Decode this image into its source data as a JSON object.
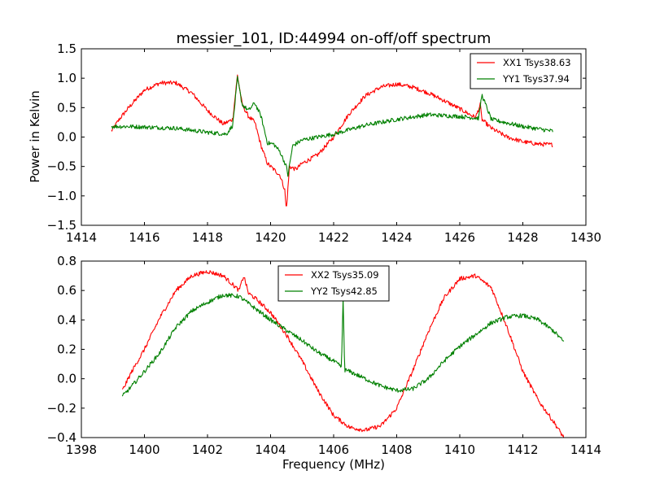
{
  "chart_data": [
    {
      "type": "line",
      "title": "messier_101, ID:44994 on-off/off spectrum",
      "xlabel": "",
      "ylabel": "Power in Kelvin",
      "xlim": [
        1414,
        1430
      ],
      "ylim": [
        -1.5,
        1.5
      ],
      "x_ticks": [
        1414,
        1416,
        1418,
        1420,
        1422,
        1424,
        1426,
        1428,
        1430
      ],
      "y_ticks": [
        -1.5,
        -1.0,
        -0.5,
        0.0,
        0.5,
        1.0,
        1.5
      ],
      "x_tick_labels": [
        "1414",
        "1416",
        "1418",
        "1420",
        "1422",
        "1424",
        "1426",
        "1428",
        "1430"
      ],
      "y_tick_labels": [
        "−1.5",
        "−1.0",
        "−0.5",
        "0.0",
        "0.5",
        "1.0",
        "1.5"
      ],
      "legend_position": "top-right",
      "series": [
        {
          "name": "XX1 Tsys38.63",
          "color": "#ff0000",
          "x": [
            1414.95,
            1415.2,
            1415.5,
            1416.0,
            1416.5,
            1417.0,
            1417.5,
            1418.0,
            1418.5,
            1418.8,
            1418.95,
            1419.1,
            1419.3,
            1419.5,
            1419.7,
            1419.9,
            1420.1,
            1420.3,
            1420.45,
            1420.5,
            1420.6,
            1420.8,
            1421.0,
            1421.5,
            1422.0,
            1422.5,
            1423.0,
            1423.5,
            1424.0,
            1424.5,
            1425.0,
            1425.5,
            1426.0,
            1426.5,
            1426.65,
            1426.7,
            1427.0,
            1427.5,
            1428.0,
            1428.5,
            1428.95
          ],
          "values": [
            0.1,
            0.3,
            0.5,
            0.8,
            0.92,
            0.92,
            0.75,
            0.45,
            0.22,
            0.3,
            1.05,
            0.55,
            0.35,
            0.25,
            -0.15,
            -0.45,
            -0.55,
            -0.65,
            -0.9,
            -1.25,
            -0.5,
            -0.55,
            -0.45,
            -0.3,
            0.0,
            0.4,
            0.7,
            0.85,
            0.9,
            0.85,
            0.75,
            0.62,
            0.48,
            0.33,
            0.55,
            0.3,
            0.15,
            0.0,
            -0.08,
            -0.12,
            -0.13
          ]
        },
        {
          "name": "YY1 Tsys37.94",
          "color": "#008000",
          "x": [
            1414.95,
            1415.5,
            1416.0,
            1417.0,
            1418.0,
            1418.6,
            1418.8,
            1418.95,
            1419.1,
            1419.3,
            1419.5,
            1419.7,
            1419.9,
            1420.1,
            1420.3,
            1420.5,
            1420.55,
            1420.7,
            1421.0,
            1422.0,
            1423.0,
            1424.0,
            1425.0,
            1426.0,
            1426.6,
            1426.7,
            1427.0,
            1428.0,
            1428.95
          ],
          "values": [
            0.18,
            0.18,
            0.17,
            0.15,
            0.08,
            0.05,
            0.2,
            1.0,
            0.55,
            0.45,
            0.58,
            0.35,
            -0.1,
            -0.12,
            -0.25,
            -0.5,
            -0.65,
            -0.15,
            -0.05,
            0.05,
            0.2,
            0.3,
            0.38,
            0.35,
            0.32,
            0.72,
            0.3,
            0.18,
            0.1
          ]
        }
      ]
    },
    {
      "type": "line",
      "title": "",
      "xlabel": "Frequency (MHz)",
      "ylabel": "",
      "xlim": [
        1398,
        1414
      ],
      "ylim": [
        -0.4,
        0.8
      ],
      "x_ticks": [
        1398,
        1400,
        1402,
        1404,
        1406,
        1408,
        1410,
        1412,
        1414
      ],
      "y_ticks": [
        -0.4,
        -0.2,
        0.0,
        0.2,
        0.4,
        0.6,
        0.8
      ],
      "x_tick_labels": [
        "1398",
        "1400",
        "1402",
        "1404",
        "1406",
        "1408",
        "1410",
        "1412",
        "1414"
      ],
      "y_tick_labels": [
        "−0.4",
        "−0.2",
        "0.0",
        "0.2",
        "0.4",
        "0.6",
        "0.8"
      ],
      "legend_position": "top-center",
      "series": [
        {
          "name": "XX2 Tsys35.09",
          "color": "#ff0000",
          "x": [
            1399.3,
            1399.6,
            1400.0,
            1400.5,
            1401.0,
            1401.5,
            1402.0,
            1402.5,
            1403.0,
            1403.15,
            1403.3,
            1403.5,
            1404.0,
            1404.5,
            1405.0,
            1405.5,
            1406.0,
            1406.5,
            1407.0,
            1407.5,
            1408.0,
            1408.5,
            1409.0,
            1409.5,
            1410.0,
            1410.5,
            1411.0,
            1411.5,
            1412.0,
            1412.5,
            1413.0,
            1413.3
          ],
          "values": [
            -0.08,
            0.05,
            0.2,
            0.42,
            0.6,
            0.7,
            0.73,
            0.7,
            0.6,
            0.7,
            0.58,
            0.55,
            0.45,
            0.3,
            0.12,
            -0.08,
            -0.25,
            -0.33,
            -0.35,
            -0.32,
            -0.2,
            0.05,
            0.32,
            0.55,
            0.68,
            0.7,
            0.62,
            0.35,
            0.05,
            -0.15,
            -0.3,
            -0.4
          ]
        },
        {
          "name": "YY2 Tsys42.85",
          "color": "#008000",
          "x": [
            1399.3,
            1399.6,
            1400.0,
            1400.5,
            1401.0,
            1401.5,
            1402.0,
            1402.5,
            1403.0,
            1403.5,
            1404.0,
            1404.5,
            1405.0,
            1405.5,
            1406.0,
            1406.25,
            1406.3,
            1406.35,
            1406.5,
            1407.0,
            1407.5,
            1408.0,
            1408.5,
            1409.0,
            1409.5,
            1410.0,
            1410.5,
            1411.0,
            1411.5,
            1412.0,
            1412.5,
            1413.0,
            1413.3
          ],
          "values": [
            -0.12,
            -0.05,
            0.05,
            0.18,
            0.35,
            0.46,
            0.52,
            0.57,
            0.56,
            0.48,
            0.4,
            0.33,
            0.26,
            0.18,
            0.12,
            0.08,
            0.55,
            0.06,
            0.05,
            0.0,
            -0.05,
            -0.08,
            -0.07,
            0.0,
            0.12,
            0.22,
            0.3,
            0.38,
            0.42,
            0.43,
            0.4,
            0.32,
            0.25
          ]
        }
      ]
    }
  ]
}
